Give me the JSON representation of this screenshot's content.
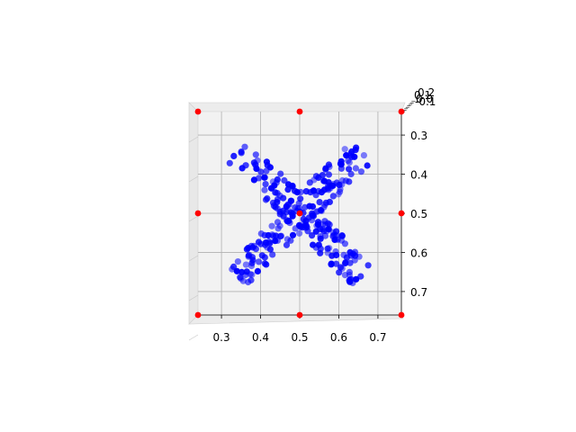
{
  "chart_data": {
    "type": "scatter",
    "projection": "3d",
    "view": "top-down",
    "title": "",
    "xlabel": "",
    "ylabel": "",
    "zlabel": "",
    "xlim": [
      0.24,
      0.76
    ],
    "ylim": [
      0.24,
      0.76
    ],
    "x_ticks": [
      "0.3",
      "0.4",
      "0.5",
      "0.6",
      "0.7"
    ],
    "y_ticks": [
      "0.3",
      "0.4",
      "0.5",
      "0.6",
      "0.7"
    ],
    "z_ticks": [
      "0.2",
      "0.1",
      "0.0",
      "-0.1"
    ],
    "grid": true,
    "colors": {
      "points": "#0000ff",
      "corners": "#ff0000",
      "pane": "#f2f2f2",
      "grid": "#b0b0b0"
    },
    "series": [
      {
        "marker": "blue-dot",
        "generator": "X-shape cloud of ~300 points along two diagonals from (0.34,0.34) to (0.66,0.66) and (0.66,0.34) to (0.34,0.66)",
        "points": []
      },
      {
        "marker": "red-dot",
        "points": [
          [
            0.24,
            0.24
          ],
          [
            0.5,
            0.24
          ],
          [
            0.76,
            0.24
          ],
          [
            0.24,
            0.5
          ],
          [
            0.5,
            0.5
          ],
          [
            0.76,
            0.5
          ],
          [
            0.24,
            0.76
          ],
          [
            0.5,
            0.76
          ],
          [
            0.76,
            0.76
          ]
        ]
      }
    ]
  }
}
